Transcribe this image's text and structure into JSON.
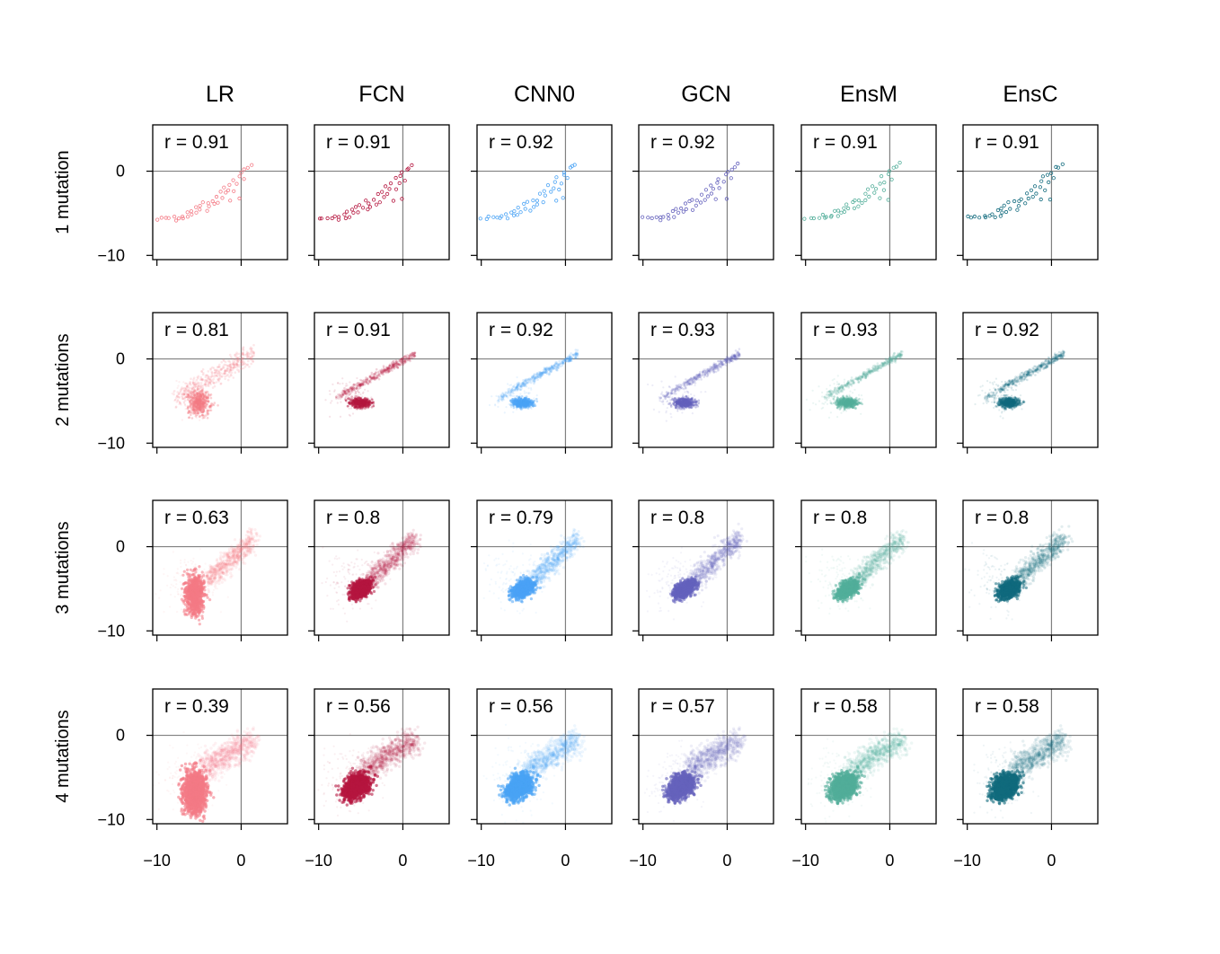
{
  "chart_data": {
    "type": "scatter",
    "layout": "grid",
    "columns": [
      "LR",
      "FCN",
      "CNN0",
      "GCN",
      "EnsM",
      "EnsC"
    ],
    "rows": [
      "1 mutation",
      "2 mutations",
      "3 mutations",
      "4 mutations"
    ],
    "colors": [
      "#f47a85",
      "#b5163f",
      "#4aa3f5",
      "#6562bd",
      "#52ae9a",
      "#106a7d"
    ],
    "xlim": [
      -10.5,
      5.5
    ],
    "ylim": [
      -10.5,
      5.5
    ],
    "xticks": [
      -10,
      0
    ],
    "yticks": [
      0,
      -10
    ],
    "xtick_labels": [
      "−10",
      "0"
    ],
    "ytick_labels": [
      "0",
      "−10"
    ],
    "reference_lines": {
      "x": 0,
      "y": 0
    },
    "correlation_labels": [
      [
        "r = 0.91",
        "r = 0.91",
        "r = 0.92",
        "r = 0.92",
        "r = 0.91",
        "r = 0.91"
      ],
      [
        "r = 0.81",
        "r = 0.91",
        "r = 0.92",
        "r = 0.93",
        "r = 0.93",
        "r = 0.92"
      ],
      [
        "r = 0.63",
        "r = 0.8",
        "r = 0.79",
        "r = 0.8",
        "r = 0.8",
        "r = 0.8"
      ],
      [
        "r = 0.39",
        "r = 0.56",
        "r = 0.56",
        "r = 0.57",
        "r = 0.58",
        "r = 0.58"
      ]
    ],
    "correlations": [
      [
        0.91,
        0.91,
        0.92,
        0.92,
        0.91,
        0.91
      ],
      [
        0.81,
        0.91,
        0.92,
        0.93,
        0.93,
        0.92
      ],
      [
        0.63,
        0.8,
        0.79,
        0.8,
        0.8,
        0.8
      ],
      [
        0.39,
        0.56,
        0.56,
        0.57,
        0.58,
        0.58
      ]
    ],
    "row_1_points": [
      [
        -10,
        -5.6
      ],
      [
        -9.5,
        -5.6
      ],
      [
        -9,
        -5.5
      ],
      [
        -8.5,
        -5.6
      ],
      [
        -8,
        -5.4
      ],
      [
        -7.8,
        -5.7
      ],
      [
        -7.5,
        -5.4
      ],
      [
        -7,
        -5.2
      ],
      [
        -6.8,
        -5.6
      ],
      [
        -6.5,
        -4.9
      ],
      [
        -6.2,
        -5.3
      ],
      [
        -6,
        -4.6
      ],
      [
        -5.8,
        -5.0
      ],
      [
        -5.5,
        -4.3
      ],
      [
        -5.3,
        -4.8
      ],
      [
        -5,
        -3.9
      ],
      [
        -4.8,
        -4.4
      ],
      [
        -4.5,
        -3.6
      ],
      [
        -4.2,
        -4.6
      ],
      [
        -4,
        -3.6
      ],
      [
        -3.8,
        -4.2
      ],
      [
        -3.5,
        -3.4
      ],
      [
        -3.2,
        -3.9
      ],
      [
        -3,
        -2.8
      ],
      [
        -2.8,
        -3.5
      ],
      [
        -2.5,
        -2.3
      ],
      [
        -2.3,
        -3.0
      ],
      [
        -2,
        -1.8
      ],
      [
        -1.8,
        -2.6
      ],
      [
        -1.5,
        -2.0
      ],
      [
        -1.3,
        -1.4
      ],
      [
        -1,
        -0.8
      ],
      [
        -0.8,
        -2.2
      ],
      [
        -0.5,
        -1.3
      ],
      [
        -0.3,
        -0.5
      ],
      [
        0,
        -0.2
      ],
      [
        0.3,
        -0.9
      ],
      [
        0.5,
        0.3
      ],
      [
        0.8,
        0.5
      ],
      [
        1.2,
        0.9
      ],
      [
        -0.2,
        -3.3
      ],
      [
        -1.2,
        -3.4
      ]
    ],
    "row_2_trend": {
      "x_range": [
        -8,
        1.5
      ],
      "slope": 0.56,
      "intercept": -0.2
    },
    "row_3_cluster_center": [
      -5,
      -5
    ],
    "row_4_cluster_center": [
      -5.5,
      -6
    ]
  }
}
